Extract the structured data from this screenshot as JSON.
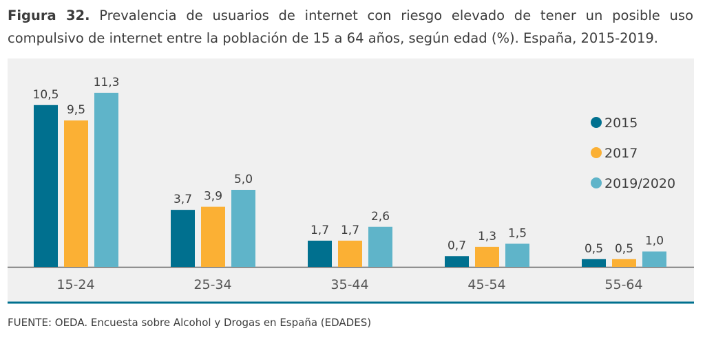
{
  "title": {
    "label": "Figura 32.",
    "line1": "Prevalencia de usuarios de internet con riesgo elevado de tener un posible uso",
    "line2": "compulsivo de internet entre la población de 15 a 64 años, según edad (%). España, 2015-2019."
  },
  "source": "FUENTE: OEDA. Encuesta sobre Alcohol y Drogas en España (EDADES)",
  "chart_data": {
    "type": "bar",
    "categories": [
      "15-24",
      "25-34",
      "35-44",
      "45-54",
      "55-64"
    ],
    "series": [
      {
        "name": "2015",
        "color": "#00708f",
        "values": [
          10.5,
          3.7,
          1.7,
          0.7,
          0.5
        ],
        "labels": [
          "10,5",
          "3,7",
          "1,7",
          "0,7",
          "0,5"
        ]
      },
      {
        "name": "2017",
        "color": "#fbb034",
        "values": [
          9.5,
          3.9,
          1.7,
          1.3,
          0.5
        ],
        "labels": [
          "9,5",
          "3,9",
          "1,7",
          "1,3",
          "0,5"
        ]
      },
      {
        "name": "2019/2020",
        "color": "#5fb4c9",
        "values": [
          11.3,
          5.0,
          2.6,
          1.5,
          1.0
        ],
        "labels": [
          "11,3",
          "5,0",
          "2,6",
          "1,5",
          "1,0"
        ]
      }
    ],
    "legend_position": "right",
    "grid": false,
    "ylim": [
      0,
      12
    ]
  }
}
